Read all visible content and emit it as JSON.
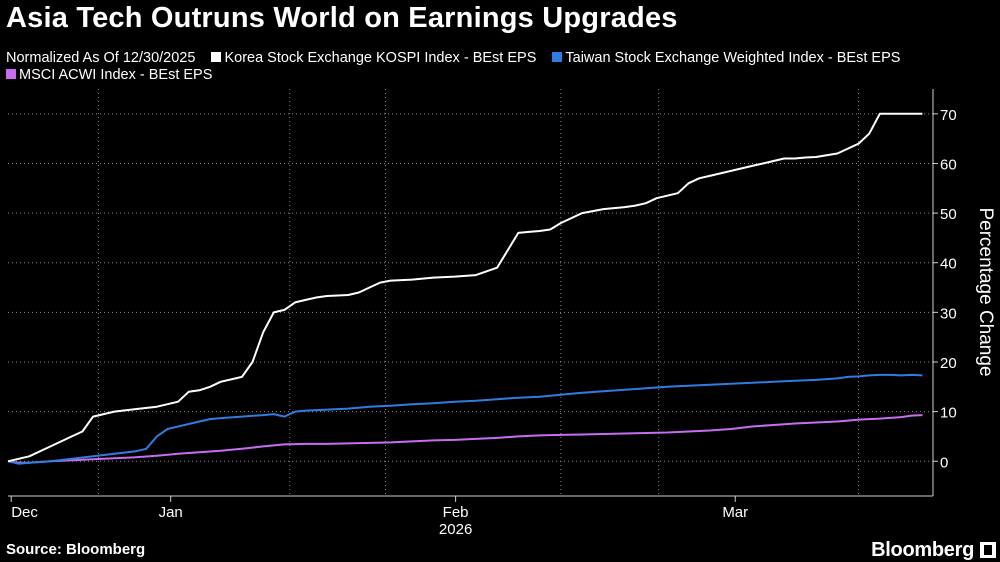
{
  "title": "Asia Tech Outruns World on Earnings Upgrades",
  "legend_note": "Normalized As Of 12/30/2025",
  "source": "Source: Bloomberg",
  "brand": "Bloomberg",
  "chart_data": {
    "type": "line",
    "title": "Asia Tech Outruns World on Earnings Upgrades",
    "ylabel": "Percentage Change",
    "ylim": [
      -7,
      75
    ],
    "yticks": [
      0,
      10,
      20,
      30,
      40,
      50,
      60,
      70
    ],
    "xlim": [
      0,
      87
    ],
    "xticks": [
      {
        "label": "Dec",
        "x": 0.3
      },
      {
        "label": "Jan",
        "x": 15.3
      },
      {
        "label": "Feb",
        "x": 42.1
      },
      {
        "label": "Mar",
        "x": 68.4
      }
    ],
    "x_sublabel": "2026",
    "series": [
      {
        "name": "Korea Stock Exchange KOSPI Index - BEst EPS",
        "color": "#ffffff",
        "x": [
          0,
          2,
          3,
          4,
          5,
          6,
          7,
          8,
          9,
          10,
          12,
          14,
          16,
          17,
          18,
          19,
          20,
          22,
          23,
          24,
          25,
          26,
          27,
          28,
          29,
          30,
          32,
          33,
          34,
          35,
          36,
          38,
          39,
          40,
          42,
          44,
          46,
          48,
          49,
          50,
          51,
          52,
          54,
          55,
          56,
          57,
          58,
          59,
          60,
          61,
          62,
          63,
          64,
          65,
          66,
          67,
          68,
          69,
          70,
          71,
          72,
          73,
          74,
          75,
          76,
          78,
          79,
          80,
          81,
          82,
          83,
          84,
          85,
          86
        ],
        "values": [
          0,
          1,
          2,
          3,
          4,
          5,
          6,
          9,
          9.5,
          10,
          10.5,
          11,
          12,
          14,
          14.3,
          15,
          16,
          17,
          20,
          26,
          30,
          30.5,
          32,
          32.5,
          33,
          33.3,
          33.5,
          34,
          35,
          36,
          36.4,
          36.6,
          36.8,
          37,
          37.2,
          37.5,
          39,
          46,
          46.2,
          46.4,
          46.7,
          48,
          50,
          50.4,
          50.8,
          51,
          51.2,
          51.5,
          52,
          53,
          53.5,
          54,
          56,
          57,
          57.5,
          58,
          58.5,
          59,
          59.5,
          60,
          60.5,
          61,
          61,
          61.2,
          61.3,
          62,
          63,
          64,
          66,
          70,
          70,
          70,
          70,
          70
        ]
      },
      {
        "name": "Taiwan Stock Exchange Weighted Index - BEst EPS",
        "color": "#2f7de1",
        "x": [
          0,
          1,
          2,
          4,
          6,
          8,
          10,
          12,
          13,
          14,
          15,
          16,
          18,
          19,
          20,
          22,
          24,
          25,
          26,
          27,
          28,
          30,
          32,
          34,
          36,
          38,
          40,
          42,
          44,
          46,
          48,
          50,
          52,
          54,
          56,
          58,
          60,
          62,
          64,
          66,
          68,
          70,
          72,
          74,
          76,
          78,
          79,
          80,
          81,
          82,
          83,
          84,
          85,
          86
        ],
        "values": [
          0,
          -0.5,
          -0.3,
          0,
          0.5,
          1,
          1.5,
          2,
          2.5,
          5,
          6.5,
          7,
          8,
          8.5,
          8.7,
          9,
          9.3,
          9.5,
          9,
          10,
          10.2,
          10.4,
          10.6,
          11,
          11.2,
          11.5,
          11.7,
          12,
          12.2,
          12.5,
          12.8,
          13,
          13.4,
          13.8,
          14.1,
          14.4,
          14.7,
          15,
          15.2,
          15.4,
          15.6,
          15.8,
          16,
          16.2,
          16.4,
          16.7,
          17,
          17.1,
          17.3,
          17.4,
          17.4,
          17.3,
          17.4,
          17.3
        ]
      },
      {
        "name": "MSCI ACWI Index - BEst EPS",
        "color": "#c86cf0",
        "x": [
          0,
          1,
          2,
          4,
          6,
          8,
          10,
          12,
          14,
          16,
          18,
          20,
          22,
          24,
          26,
          28,
          30,
          32,
          34,
          36,
          38,
          40,
          42,
          44,
          46,
          48,
          50,
          52,
          54,
          56,
          58,
          60,
          62,
          64,
          66,
          68,
          70,
          72,
          74,
          76,
          78,
          79,
          80,
          82,
          84,
          85,
          86
        ],
        "values": [
          0,
          -0.3,
          -0.3,
          0,
          0.2,
          0.4,
          0.6,
          0.8,
          1.1,
          1.5,
          1.8,
          2.1,
          2.5,
          3,
          3.4,
          3.5,
          3.5,
          3.6,
          3.7,
          3.8,
          4,
          4.2,
          4.3,
          4.5,
          4.7,
          5,
          5.2,
          5.3,
          5.4,
          5.5,
          5.6,
          5.7,
          5.8,
          6,
          6.2,
          6.5,
          7,
          7.3,
          7.6,
          7.8,
          8,
          8.2,
          8.4,
          8.6,
          8.9,
          9.2,
          9.3
        ]
      }
    ]
  }
}
